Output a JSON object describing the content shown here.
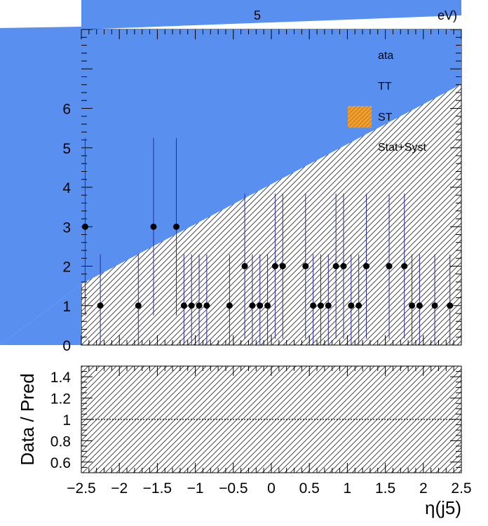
{
  "chart_data": {
    "type": "scatter",
    "header_fragments": [
      "5",
      "eV)"
    ],
    "xlabel": "η(j5)",
    "ylabel_ratio": "Data / Pred",
    "xlim": [
      -2.5,
      2.5
    ],
    "ylim_main": [
      0,
      8
    ],
    "ylim_ratio": [
      0.5,
      1.5
    ],
    "x_ticks": [
      -2.5,
      -2,
      -1.5,
      -1,
      -0.5,
      0,
      0.5,
      1,
      1.5,
      2,
      2.5
    ],
    "x_tick_labels": [
      "−2.5",
      "−2",
      "−1.5",
      "−1",
      "−0.5",
      "0",
      "0.5",
      "1",
      "1.5",
      "2",
      "2.5"
    ],
    "y_ticks_main": [
      0,
      1,
      2,
      3,
      4,
      5,
      6
    ],
    "y_tick_labels_main": [
      "0",
      "1",
      "2",
      "3",
      "4",
      "5",
      "6"
    ],
    "y_ticks_ratio": [
      0.6,
      0.8,
      1,
      1.2,
      1.4
    ],
    "y_tick_labels_ratio": [
      "0.6",
      "0.8",
      "1",
      "1.2",
      "1.4"
    ],
    "ratio_reference": 1,
    "grid": false,
    "legend_position": "top-right",
    "legend": [
      {
        "key": "data",
        "label": "Data",
        "visible_label": "ata",
        "color": "#000000"
      },
      {
        "key": "tt",
        "label": "TT",
        "color": "#5990f0"
      },
      {
        "key": "st",
        "label": "ST",
        "color": "#f0a030"
      },
      {
        "key": "unc",
        "label": "Stat+Syst",
        "color": "#ffffff"
      }
    ],
    "colors": {
      "tt": "#5990f0",
      "st": "#f0a030",
      "errorbar": "#2a2a9a",
      "marker": "#000000"
    },
    "series": [
      {
        "name": "Data",
        "x": [
          -2.45,
          -2.25,
          -1.75,
          -1.55,
          -1.25,
          -1.15,
          -1.05,
          -0.95,
          -0.85,
          -0.55,
          -0.35,
          -0.25,
          -0.15,
          -0.05,
          0.05,
          0.15,
          0.45,
          0.55,
          0.65,
          0.75,
          0.85,
          0.95,
          1.05,
          1.15,
          1.25,
          1.55,
          1.75,
          1.85,
          1.95,
          2.15,
          2.35
        ],
        "y": [
          3,
          1,
          1,
          3,
          3,
          1,
          1,
          1,
          1,
          1,
          2,
          1,
          1,
          1,
          2,
          2,
          2,
          1,
          1,
          1,
          2,
          2,
          1,
          1,
          2,
          2,
          2,
          1,
          1,
          1,
          1
        ]
      }
    ]
  }
}
